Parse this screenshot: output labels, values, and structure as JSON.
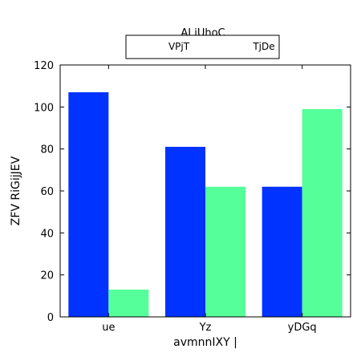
{
  "chart_data": {
    "type": "bar",
    "title": "",
    "xlabel": "avmnnIXY |",
    "ylabel": "ZFV RiGijJEV",
    "categories": [
      "ue",
      "Yz",
      "yDGq"
    ],
    "series": [
      {
        "name": "VPjT",
        "values": [
          107,
          81,
          62
        ],
        "color": "#0033ff"
      },
      {
        "name": "TjDe",
        "values": [
          13,
          62,
          99
        ],
        "color": "#55ff99"
      }
    ],
    "ylim": [
      0,
      120
    ],
    "yticks": [
      0,
      20,
      40,
      60,
      80,
      100,
      120
    ],
    "grid": false,
    "legend": {
      "title": "AJ iUhoC",
      "position": "top-center",
      "columns": 2
    }
  }
}
